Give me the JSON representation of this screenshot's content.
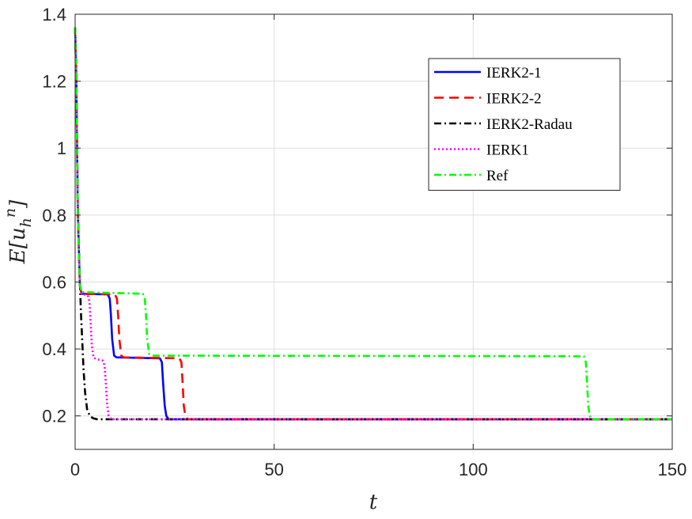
{
  "chart_data": {
    "type": "line",
    "xlabel": "t",
    "ylabel": "E[u_h^n]",
    "xlim": [
      0,
      150
    ],
    "ylim": [
      0.1,
      1.4
    ],
    "xticks": [
      "0",
      "50",
      "100",
      "150"
    ],
    "yticks": [
      "0.2",
      "0.4",
      "0.6",
      "0.8",
      "1",
      "1.2",
      "1.4"
    ],
    "grid": true,
    "legend_position": "top-right",
    "series": [
      {
        "name": "IERK2-1",
        "color": "#0000ff",
        "dash": "solid",
        "x": [
          0,
          0.3,
          0.7,
          1.2,
          1.6,
          8.2,
          8.7,
          9.0,
          9.3,
          9.8,
          10.4,
          21.3,
          21.8,
          22.1,
          22.5,
          22.9,
          23.5,
          150
        ],
        "y": [
          1.36,
          1.2,
          0.8,
          0.59,
          0.565,
          0.563,
          0.55,
          0.5,
          0.43,
          0.38,
          0.375,
          0.372,
          0.36,
          0.3,
          0.23,
          0.2,
          0.19,
          0.19
        ]
      },
      {
        "name": "IERK2-2",
        "color": "#ff0000",
        "dash": "dashed",
        "x": [
          0,
          0.3,
          0.7,
          1.2,
          1.6,
          10.0,
          10.5,
          10.8,
          11.1,
          11.6,
          12.2,
          26.2,
          26.7,
          27.0,
          27.3,
          27.7,
          28.3,
          150
        ],
        "y": [
          1.36,
          1.2,
          0.8,
          0.59,
          0.565,
          0.563,
          0.55,
          0.5,
          0.43,
          0.38,
          0.375,
          0.372,
          0.36,
          0.3,
          0.23,
          0.2,
          0.19,
          0.19
        ]
      },
      {
        "name": "IERK2-Radau",
        "color": "#000000",
        "dash": "dashdot",
        "x": [
          0,
          0.3,
          0.7,
          1.2,
          1.5,
          1.8,
          2.1,
          2.5,
          3.0,
          3.7,
          4.5,
          5.5,
          150
        ],
        "y": [
          1.36,
          1.2,
          0.8,
          0.6,
          0.5,
          0.42,
          0.34,
          0.27,
          0.22,
          0.2,
          0.193,
          0.19,
          0.19
        ]
      },
      {
        "name": "IERK1",
        "color": "#ff00ff",
        "dash": "dotted",
        "x": [
          0,
          0.3,
          0.7,
          1.2,
          1.6,
          3.2,
          3.6,
          3.9,
          4.2,
          4.6,
          5.2,
          7.0,
          7.4,
          7.7,
          8.0,
          8.4,
          9.0,
          150
        ],
        "y": [
          1.36,
          1.2,
          0.8,
          0.59,
          0.565,
          0.56,
          0.54,
          0.48,
          0.41,
          0.375,
          0.37,
          0.365,
          0.35,
          0.3,
          0.24,
          0.2,
          0.19,
          0.19
        ]
      },
      {
        "name": "Ref",
        "color": "#00ff00",
        "dash": "dashdot",
        "x": [
          0,
          0.3,
          0.7,
          1.2,
          1.6,
          17.0,
          17.5,
          17.8,
          18.1,
          18.6,
          19.2,
          127.8,
          128.3,
          128.6,
          128.9,
          129.3,
          129.9,
          150
        ],
        "y": [
          1.36,
          1.2,
          0.8,
          0.59,
          0.57,
          0.565,
          0.55,
          0.5,
          0.43,
          0.385,
          0.38,
          0.378,
          0.36,
          0.3,
          0.23,
          0.2,
          0.19,
          0.19
        ]
      }
    ]
  }
}
